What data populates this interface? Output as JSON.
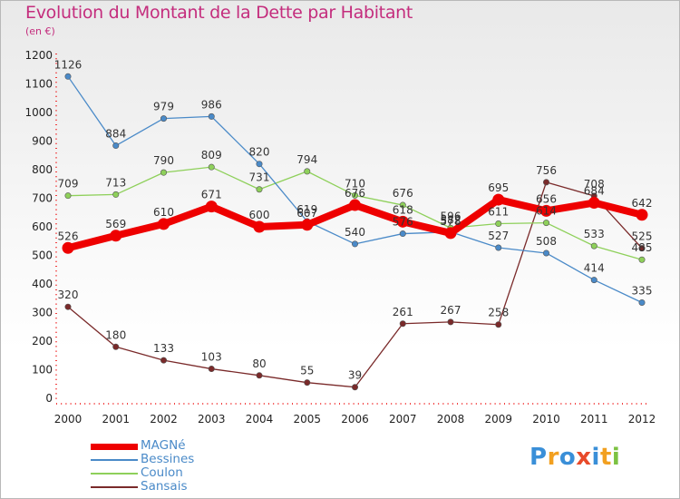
{
  "header": {
    "title": "Evolution du Montant de la Dette par Habitant",
    "unit": "(en €)"
  },
  "logo": {
    "text": "Proxiti",
    "colors": [
      "#3a8fd8",
      "#f2a020",
      "#3a8fd8",
      "#e84a2a",
      "#3a8fd8",
      "#f2a020",
      "#7cc242"
    ]
  },
  "chart_data": {
    "type": "line",
    "title": "Evolution du Montant de la Dette par Habitant",
    "ylabel": "(en €)",
    "x": [
      "2000",
      "2001",
      "2002",
      "2003",
      "2004",
      "2005",
      "2006",
      "2007",
      "2008",
      "2009",
      "2010",
      "2011",
      "2012"
    ],
    "ylim": [
      0,
      1200
    ],
    "yticks": [
      0,
      100,
      200,
      300,
      400,
      500,
      600,
      700,
      800,
      900,
      1000,
      1100,
      1200
    ],
    "grid": false,
    "legend": "bottom-left",
    "series": [
      {
        "name": "MAGNé",
        "color": "#ee0000",
        "values": [
          526,
          569,
          610,
          671,
          600,
          607,
          676,
          618,
          578,
          695,
          656,
          684,
          642
        ],
        "labels": [
          "526",
          "569",
          "610",
          "671",
          "600",
          "607",
          "676",
          "618",
          "578",
          "695",
          "656",
          "684",
          "642"
        ]
      },
      {
        "name": "Bessines",
        "color": "#4a8ac8",
        "values": [
          1126,
          884,
          979,
          986,
          820,
          619,
          540,
          576,
          582,
          527,
          508,
          414,
          335
        ],
        "labels": [
          "1126",
          "884",
          "979",
          "986",
          "820",
          "619",
          "540",
          "576",
          "582",
          "527",
          "508",
          "414",
          "335"
        ]
      },
      {
        "name": "Coulon",
        "color": "#8ed05a",
        "values": [
          709,
          713,
          790,
          809,
          731,
          794,
          710,
          676,
          596,
          611,
          614,
          533,
          485
        ],
        "labels": [
          "709",
          "713",
          "790",
          "809",
          "731",
          "794",
          "710",
          "676",
          "596",
          "611",
          "614",
          "533",
          "485"
        ]
      },
      {
        "name": "Sansais",
        "color": "#7a2a2a",
        "values": [
          320,
          180,
          133,
          103,
          80,
          55,
          39,
          261,
          267,
          258,
          756,
          708,
          525
        ],
        "labels": [
          "320",
          "180",
          "133",
          "103",
          "80",
          "55",
          "39",
          "261",
          "267",
          "258",
          "756",
          "708",
          "525"
        ]
      }
    ]
  }
}
